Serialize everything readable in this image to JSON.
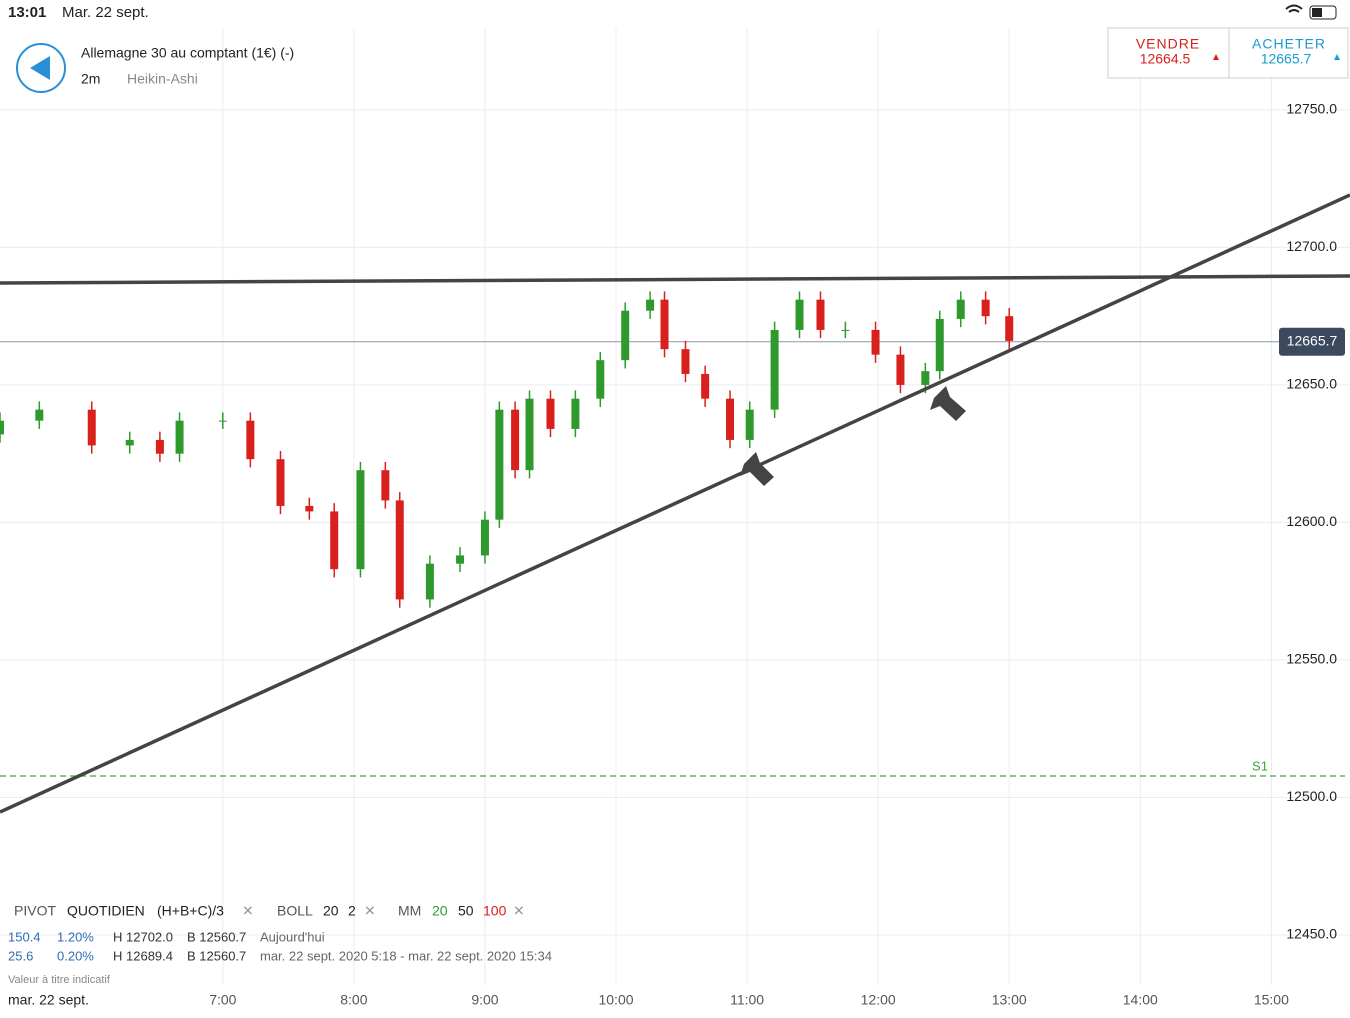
{
  "status_bar": {
    "time": "13:01",
    "date": "Mar. 22 sept."
  },
  "header": {
    "instrument": "Allemagne 30 au comptant (1€) (-)",
    "interval": "2m",
    "chart_style": "Heikin-Ashi"
  },
  "quote": {
    "sell_label": "VENDRE",
    "sell_price": "12664.5",
    "buy_label": "ACHETER",
    "buy_price": "12665.7"
  },
  "chart_data": {
    "type": "candlestick",
    "x": [
      5.3,
      5.6,
      6.0,
      6.29,
      6.52,
      6.67,
      7.0,
      7.21,
      7.44,
      7.66,
      7.85,
      8.05,
      8.24,
      8.35,
      8.58,
      8.81,
      9.0,
      9.11,
      9.23,
      9.34,
      9.5,
      9.69,
      9.88,
      10.07,
      10.26,
      10.37,
      10.53,
      10.68,
      10.87,
      11.02,
      11.21,
      11.4,
      11.56,
      11.75,
      11.98,
      12.17,
      12.36,
      12.47,
      12.63,
      12.82,
      13.0
    ],
    "open": [
      12632,
      12637,
      12641,
      12628,
      12630,
      12625,
      12637,
      12637,
      12623,
      12606,
      12604,
      12583,
      12619,
      12608,
      12572,
      12585,
      12588,
      12601,
      12641,
      12619,
      12645,
      12634,
      12645,
      12659,
      12677,
      12681,
      12663,
      12654,
      12645,
      12630,
      12641,
      12670,
      12681,
      12670,
      12670,
      12661,
      12650,
      12655,
      12674,
      12681,
      12675
    ],
    "high": [
      12640,
      12644,
      12644,
      12633,
      12633,
      12640,
      12640,
      12640,
      12626,
      12609,
      12607,
      12622,
      12622,
      12611,
      12588,
      12591,
      12604,
      12644,
      12644,
      12648,
      12648,
      12648,
      12662,
      12680,
      12684,
      12684,
      12666,
      12657,
      12648,
      12644,
      12673,
      12684,
      12684,
      12673,
      12673,
      12664,
      12658,
      12677,
      12684,
      12684,
      12678
    ],
    "low": [
      12629,
      12634,
      12625,
      12625,
      12622,
      12622,
      12634,
      12620,
      12603,
      12601,
      12580,
      12580,
      12605,
      12569,
      12569,
      12582,
      12585,
      12598,
      12616,
      12616,
      12631,
      12631,
      12642,
      12656,
      12674,
      12660,
      12651,
      12642,
      12627,
      12627,
      12638,
      12667,
      12667,
      12667,
      12658,
      12647,
      12647,
      12652,
      12671,
      12672,
      12663
    ],
    "close": [
      12637,
      12641,
      12628,
      12630,
      12625,
      12637,
      12637,
      12623,
      12606,
      12604,
      12583,
      12619,
      12608,
      12572,
      12585,
      12588,
      12601,
      12641,
      12619,
      12645,
      12634,
      12645,
      12659,
      12677,
      12681,
      12663,
      12654,
      12645,
      12630,
      12641,
      12670,
      12681,
      12670,
      12670,
      12661,
      12650,
      12655,
      12674,
      12681,
      12675,
      12666
    ],
    "up_color": "#2e9a2e",
    "down_color": "#d8201c",
    "xlim": [
      5.3,
      15.6
    ],
    "ylim": [
      12431.8,
      12753.6
    ],
    "xticks": [
      {
        "value": 7,
        "label": "7:00"
      },
      {
        "value": 8,
        "label": "8:00"
      },
      {
        "value": 9,
        "label": "9:00"
      },
      {
        "value": 10,
        "label": "10:00"
      },
      {
        "value": 11,
        "label": "11:00"
      },
      {
        "value": 12,
        "label": "12:00"
      },
      {
        "value": 13,
        "label": "13:00"
      },
      {
        "value": 14,
        "label": "14:00"
      },
      {
        "value": 15,
        "label": "15:00"
      }
    ],
    "yticks": [
      {
        "value": 12750,
        "label": "12750.0"
      },
      {
        "value": 12700,
        "label": "12700.0"
      },
      {
        "value": 12650,
        "label": "12650.0"
      },
      {
        "value": 12600,
        "label": "12600.0"
      },
      {
        "value": 12550,
        "label": "12550.0"
      },
      {
        "value": 12500,
        "label": "12500.0"
      },
      {
        "value": 12450,
        "label": "12450.0"
      }
    ],
    "grid": true,
    "current_price": 12665.7,
    "pivot": {
      "label": "S1",
      "value": 12507.8
    }
  },
  "indicators": {
    "pivot": [
      "PIVOT",
      "QUOTIDIEN",
      "(H+B+C)/3"
    ],
    "boll": [
      "BOLL",
      "20",
      "2"
    ],
    "mm": [
      "MM",
      "20",
      "50",
      "100"
    ]
  },
  "stats": [
    [
      "150.4",
      "1.20%",
      "H 12702.0",
      "B 12560.7",
      "Aujourd'hui"
    ],
    [
      "25.6",
      "0.20%",
      "H 12689.4",
      "B 12560.7",
      "mar. 22 sept. 2020 5:18 - mar. 22 sept. 2020 15:34"
    ]
  ],
  "footer": {
    "note": "Valeur à titre indicatif",
    "date": "mar. 22 sept."
  }
}
